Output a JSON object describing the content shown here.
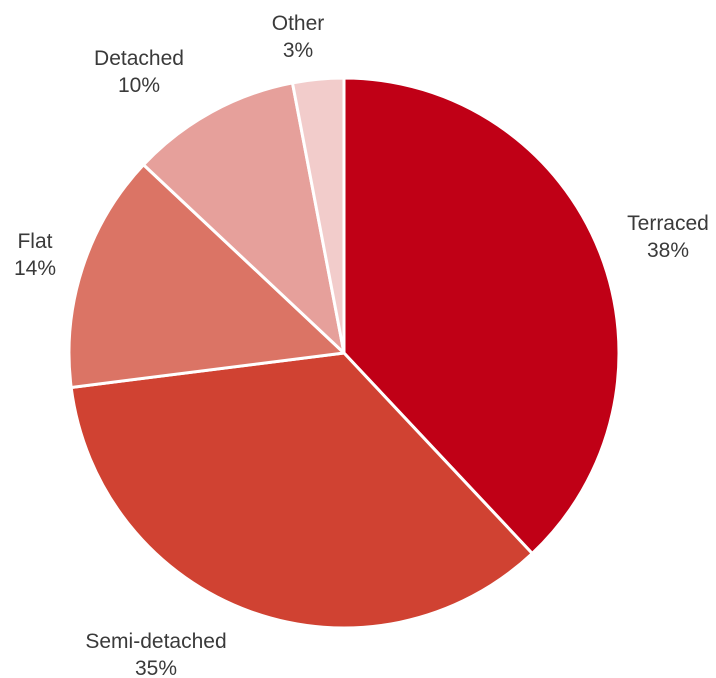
{
  "chart_data": {
    "type": "pie",
    "title": "",
    "slices": [
      {
        "label": "Terraced",
        "value": 38,
        "value_label": "38%",
        "color": "#c00016"
      },
      {
        "label": "Semi-detached",
        "value": 35,
        "value_label": "35%",
        "color": "#d04232"
      },
      {
        "label": "Flat",
        "value": 14,
        "value_label": "14%",
        "color": "#db7465"
      },
      {
        "label": "Detached",
        "value": 10,
        "value_label": "10%",
        "color": "#e6a09b"
      },
      {
        "label": "Other",
        "value": 3,
        "value_label": "3%",
        "color": "#f2cccb"
      }
    ],
    "start_angle_deg": 0,
    "direction": "clockwise",
    "legend": "none"
  }
}
